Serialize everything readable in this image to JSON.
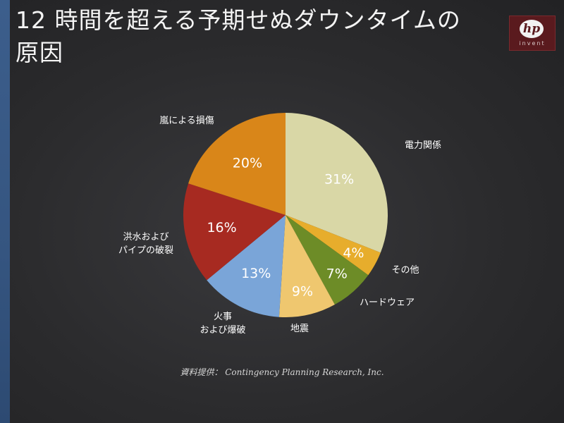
{
  "slide": {
    "title_line1": "12 時間を超える予期せぬダウンタイムの",
    "title_line2": "原因",
    "logo_mark": "hp",
    "logo_sub": "invent",
    "source": "資料提供： Contingency Planning Research, Inc."
  },
  "colors": {
    "background": "#2c2c2e",
    "accent_band": "#3c5e8c",
    "logo_bg": "#5a1a1e"
  },
  "chart_data": {
    "type": "pie",
    "title": "12 時間を超える予期せぬダウンタイムの原因",
    "start_angle_deg": 0,
    "direction": "clockwise",
    "slices": [
      {
        "label": "電力関係",
        "value": 31,
        "display": "31%",
        "color": "#d9d7a6"
      },
      {
        "label": "その他",
        "value": 4,
        "display": "4%",
        "color": "#e7ad2c"
      },
      {
        "label": "ハードウェア",
        "value": 7,
        "display": "7%",
        "color": "#6d8c27"
      },
      {
        "label": "地震",
        "value": 9,
        "display": "9%",
        "color": "#efc76f"
      },
      {
        "label": "火事\nおよび爆破",
        "value": 13,
        "display": "13%",
        "color": "#7aa5d8"
      },
      {
        "label": "洪水および\nパイプの破裂",
        "value": 16,
        "display": "16%",
        "color": "#a72a21"
      },
      {
        "label": "嵐による損傷",
        "value": 20,
        "display": "20%",
        "color": "#d98619"
      }
    ]
  }
}
